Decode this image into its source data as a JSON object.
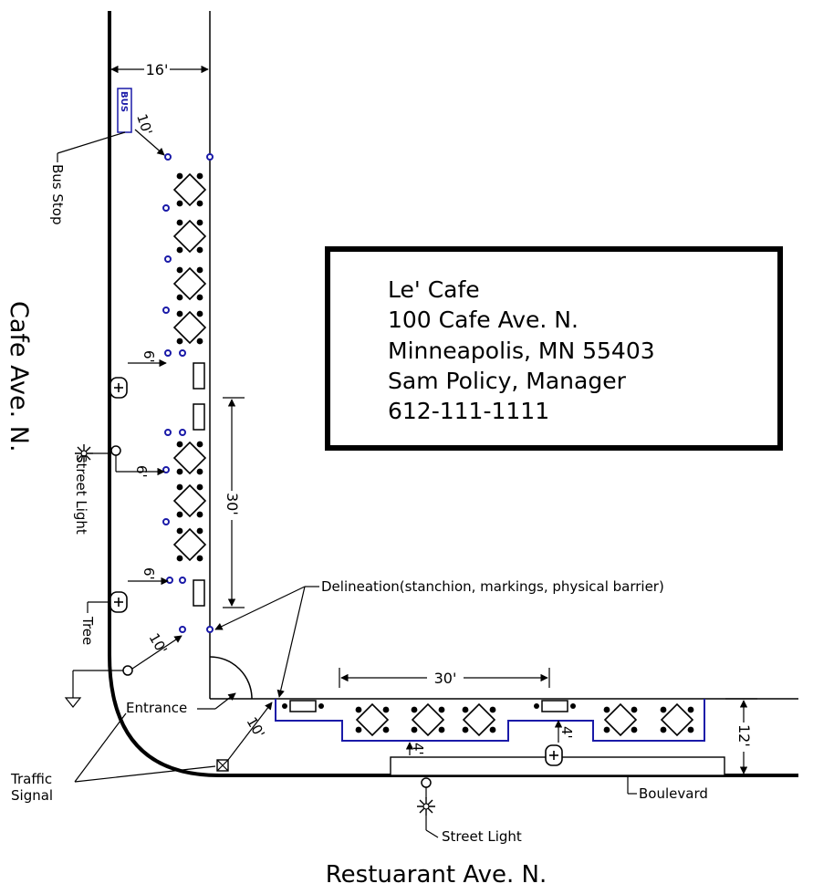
{
  "info_box": {
    "lines": [
      "Le' Cafe",
      "100 Cafe Ave. N.",
      "Minneapolis, MN 55403",
      "Sam Policy, Manager",
      "612-111-1111"
    ]
  },
  "streets": {
    "vertical": "Cafe Ave. N.",
    "horizontal": "Restuarant Ave. N."
  },
  "labels": {
    "bus": "BUS",
    "bus_stop": "Bus Stop",
    "street_light": "Street Light",
    "tree": "Tree",
    "traffic_signal_1": "Traffic",
    "traffic_signal_2": "Signal",
    "entrance": "Entrance",
    "delineation": "Delineation(stanchion, markings, physical barrier)",
    "boulevard": "Boulevard"
  },
  "dimensions": {
    "sidewalk_width": "16'",
    "bus_offset": "10'",
    "planter_offset_1": "6'",
    "light_offset": "6'",
    "planter_offset_2": "6'",
    "side_length": "30'",
    "corner_offset_1": "10'",
    "corner_offset_2": "10'",
    "front_length": "30'",
    "front_width": "12'",
    "boulevard_offset_1": "4'",
    "boulevard_offset_2": "4'"
  },
  "colors": {
    "delineation": "#1a1aa8",
    "ink": "#000000"
  }
}
